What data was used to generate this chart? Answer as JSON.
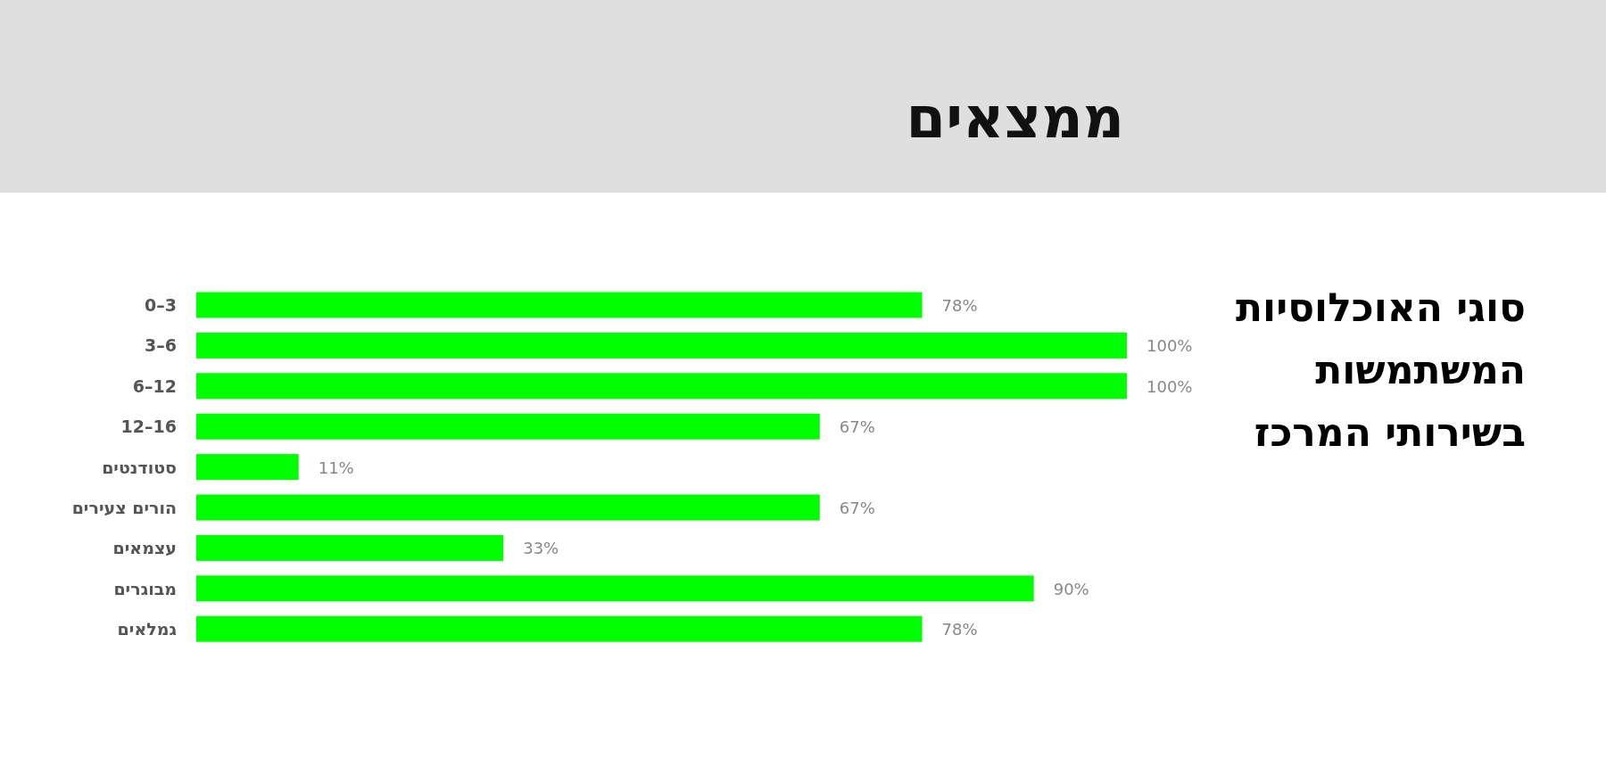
{
  "chart_data": {
    "type": "bar",
    "orientation": "horizontal",
    "title": "סוגי האוכלוסיות המשתמשות בשירותי המרכז",
    "subtitle": "ממצאים",
    "categories": [
      "0–3",
      "3–6",
      "6–12",
      "12–16",
      "סטודנטים",
      "הורים צעירים",
      "עצמאים",
      "מבוגרים",
      "גמלאים"
    ],
    "values": [
      78,
      100,
      100,
      67,
      11,
      67,
      33,
      90,
      78
    ],
    "value_labels": [
      "78%",
      "100%",
      "100%",
      "67%",
      "11%",
      "67%",
      "33%",
      "90%",
      "78%"
    ],
    "color": "#00ff00"
  }
}
